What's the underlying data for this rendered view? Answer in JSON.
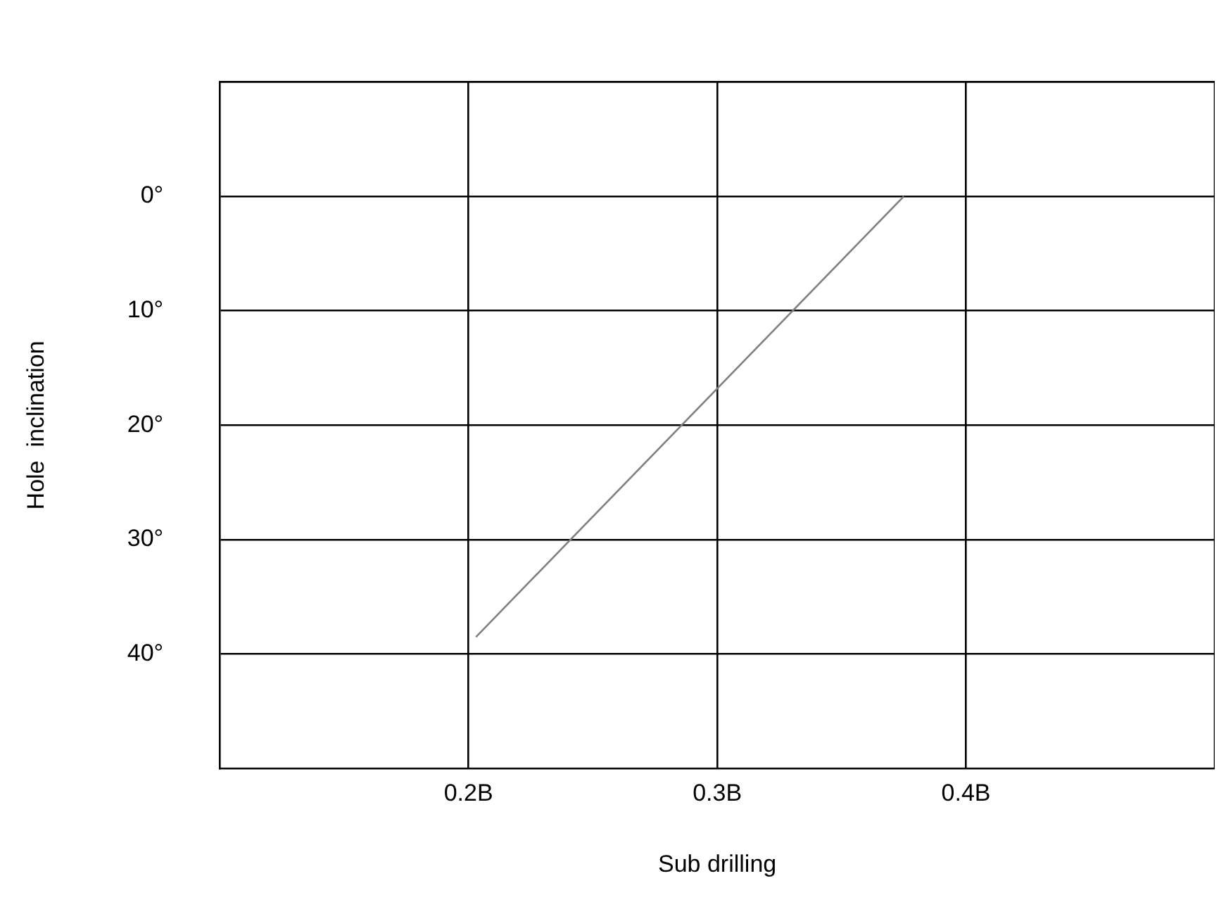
{
  "chart_data": {
    "type": "line",
    "xlabel": "Sub drilling",
    "ylabel": "Hole  inclination",
    "series": [
      {
        "color": "#808080",
        "x": [
          0.203,
          0.375
        ],
        "values": [
          38.5,
          0
        ]
      }
    ],
    "xlim": [
      0.1,
      0.5
    ],
    "xticks": [
      {
        "value": 0.2,
        "label": "0.2B"
      },
      {
        "value": 0.3,
        "label": "0.3B"
      },
      {
        "value": 0.4,
        "label": "0.4B"
      }
    ],
    "ylim": [
      50,
      -10
    ],
    "yticks": [
      {
        "value": 0,
        "label": "0°"
      },
      {
        "value": 10,
        "label": "10°"
      },
      {
        "value": 20,
        "label": "20°"
      },
      {
        "value": 30,
        "label": "30°"
      },
      {
        "value": 40,
        "label": "40°"
      }
    ],
    "grid": true,
    "legend": false,
    "marker": "none",
    "line_style": "solid"
  }
}
